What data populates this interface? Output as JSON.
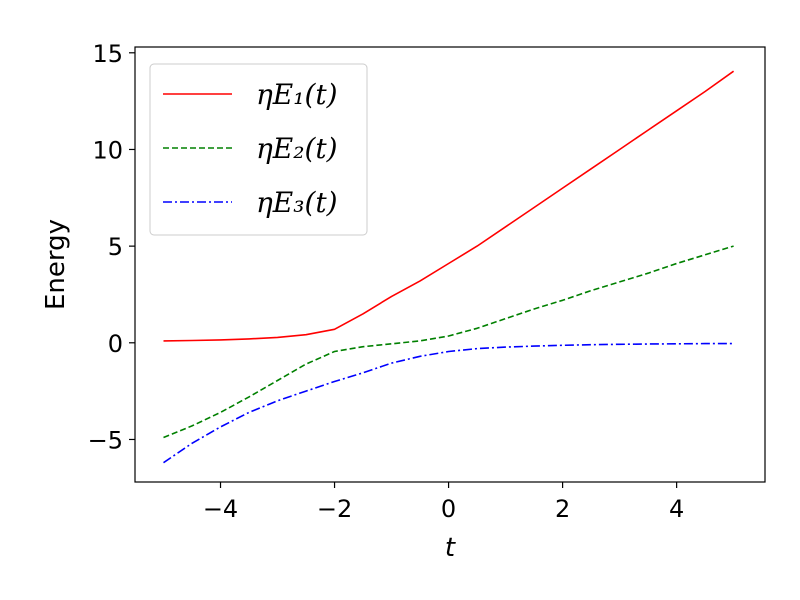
{
  "chart_data": {
    "type": "line",
    "xlabel": "t",
    "ylabel": "Energy",
    "xlim": [
      -5.5,
      5.55
    ],
    "ylim": [
      -7.2,
      15.3
    ],
    "xticks": [
      -4,
      -2,
      0,
      2,
      4
    ],
    "yticks": [
      -5,
      0,
      5,
      10,
      15
    ],
    "xtick_labels": [
      "−4",
      "−2",
      "0",
      "2",
      "4"
    ],
    "ytick_labels": [
      "−5",
      "0",
      "5",
      "10",
      "15"
    ],
    "grid": false,
    "legend_position": "top-left",
    "series": [
      {
        "name": "ηE₁(t)",
        "color": "#ff0000",
        "dash": "solid",
        "x": [
          -5,
          -4.5,
          -4,
          -3.5,
          -3,
          -2.5,
          -2,
          -1.5,
          -1,
          -0.5,
          0,
          0.5,
          1,
          1.5,
          2,
          2.5,
          3,
          3.5,
          4,
          4.5,
          5
        ],
        "y": [
          0.1,
          0.12,
          0.15,
          0.2,
          0.28,
          0.42,
          0.7,
          1.5,
          2.4,
          3.2,
          4.1,
          5.0,
          6.0,
          7.0,
          8.0,
          9.0,
          10.0,
          11.0,
          12.0,
          13.0,
          14.05
        ]
      },
      {
        "name": "ηE₂(t)",
        "color": "#008000",
        "dash": "dashed",
        "x": [
          -5,
          -4.5,
          -4,
          -3.5,
          -3,
          -2.5,
          -2,
          -1.5,
          -1,
          -0.5,
          0,
          0.5,
          1,
          1.5,
          2,
          2.5,
          3,
          3.5,
          4,
          4.5,
          5
        ],
        "y": [
          -4.9,
          -4.3,
          -3.6,
          -2.8,
          -1.95,
          -1.1,
          -0.45,
          -0.2,
          -0.05,
          0.1,
          0.35,
          0.75,
          1.25,
          1.75,
          2.2,
          2.7,
          3.15,
          3.6,
          4.1,
          4.55,
          5.0
        ]
      },
      {
        "name": "ηE₃(t)",
        "color": "#0000ff",
        "dash": "dashdot",
        "x": [
          -5,
          -4.5,
          -4,
          -3.5,
          -3,
          -2.5,
          -2,
          -1.5,
          -1,
          -0.5,
          0,
          0.5,
          1,
          1.5,
          2,
          2.5,
          3,
          3.5,
          4,
          4.5,
          5
        ],
        "y": [
          -6.2,
          -5.2,
          -4.35,
          -3.6,
          -3.0,
          -2.5,
          -2.0,
          -1.55,
          -1.05,
          -0.7,
          -0.45,
          -0.3,
          -0.22,
          -0.17,
          -0.13,
          -0.1,
          -0.08,
          -0.06,
          -0.05,
          -0.04,
          -0.04
        ]
      }
    ]
  }
}
